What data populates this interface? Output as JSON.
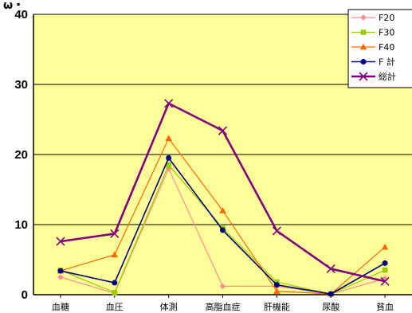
{
  "chart_data": {
    "type": "line",
    "title": "ω・",
    "categories": [
      "血糖",
      "血圧",
      "体測",
      "高脂血症",
      "肝機能",
      "尿酸",
      "貧血"
    ],
    "ylim": [
      0,
      40
    ],
    "yticks": [
      0,
      10,
      20,
      30,
      40
    ],
    "grid": true,
    "legend_position": "top-right",
    "plot_background": "#ffff99",
    "series": [
      {
        "name": "F20",
        "color": "#ff8c8c",
        "marker": "diamond",
        "width": 1.2,
        "values": [
          2.5,
          0.2,
          18,
          1.2,
          1.2,
          0.1,
          2.3
        ]
      },
      {
        "name": "F30",
        "color": "#99cc00",
        "marker": "square",
        "width": 1.2,
        "values": [
          3.5,
          0.3,
          18.5,
          9.5,
          1.8,
          0.1,
          3.5
        ]
      },
      {
        "name": "F40",
        "color": "#ff6600",
        "marker": "triangle",
        "width": 1.2,
        "values": [
          3.4,
          5.7,
          22.3,
          12,
          0.5,
          0.1,
          6.8
        ]
      },
      {
        "name": "F 計",
        "color": "#000080",
        "marker": "circle",
        "width": 1.6,
        "values": [
          3.4,
          1.7,
          19.5,
          9.2,
          1.4,
          0.1,
          4.5
        ]
      },
      {
        "name": "総計",
        "color": "#800080",
        "marker": "x",
        "width": 2.6,
        "values": [
          7.6,
          8.7,
          27.3,
          23.4,
          9.1,
          3.7,
          1.9
        ]
      }
    ]
  }
}
